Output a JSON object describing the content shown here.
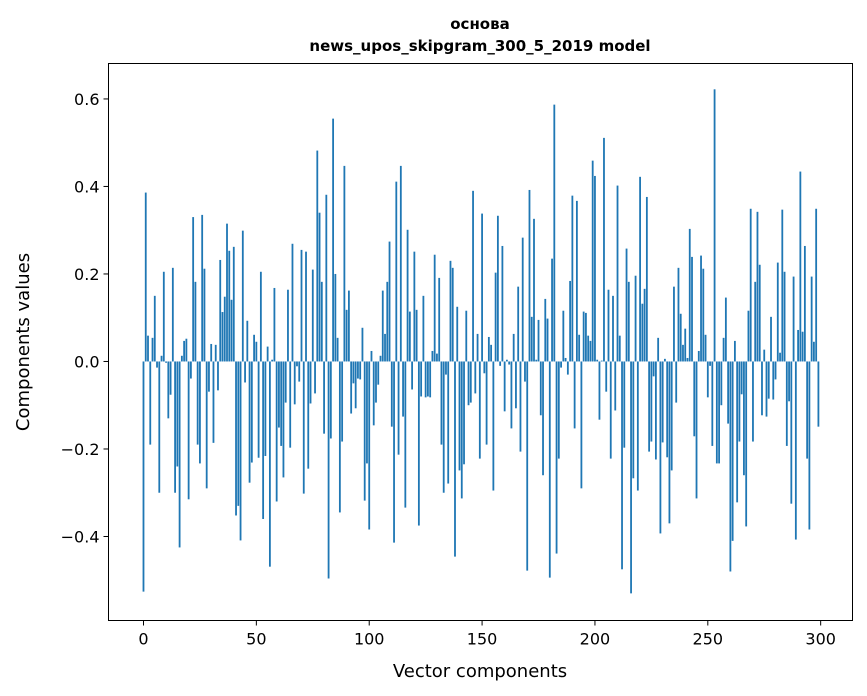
{
  "chart_data": {
    "type": "bar",
    "title": "основа",
    "subtitle": "news_upos_skipgram_300_5_2019 model",
    "xlabel": "Vector components",
    "ylabel": "Components values",
    "xlim": [
      -15.5,
      314.1
    ],
    "ylim": [
      -0.592,
      0.681
    ],
    "xticks": [
      0,
      50,
      100,
      150,
      200,
      250,
      300
    ],
    "xtick_labels": [
      "0",
      "50",
      "100",
      "150",
      "200",
      "250",
      "300"
    ],
    "yticks": [
      -0.4,
      -0.2,
      0.0,
      0.2,
      0.4,
      0.6
    ],
    "ytick_labels": [
      "−0.4",
      "−0.2",
      "0.0",
      "0.2",
      "0.4",
      "0.6"
    ],
    "grid": false,
    "color": "#1f77b4",
    "values": [
      -0.526,
      0.386,
      0.059,
      -0.19,
      0.054,
      0.15,
      -0.014,
      -0.3,
      0.013,
      0.205,
      -0.003,
      -0.13,
      -0.076,
      0.214,
      -0.3,
      -0.24,
      -0.425,
      0.013,
      0.047,
      0.052,
      -0.315,
      -0.039,
      0.33,
      0.182,
      -0.19,
      -0.233,
      0.335,
      0.212,
      -0.29,
      -0.069,
      0.04,
      -0.186,
      0.038,
      -0.066,
      0.232,
      0.113,
      0.148,
      0.315,
      0.253,
      0.141,
      0.262,
      -0.352,
      -0.33,
      -0.409,
      0.299,
      -0.048,
      0.093,
      -0.277,
      -0.231,
      0.061,
      0.045,
      -0.22,
      0.205,
      -0.36,
      -0.216,
      0.034,
      -0.469,
      0.004,
      0.168,
      -0.32,
      -0.151,
      -0.193,
      -0.265,
      -0.094,
      0.164,
      -0.197,
      0.269,
      -0.098,
      -0.011,
      -0.046,
      0.255,
      -0.302,
      0.251,
      -0.245,
      -0.096,
      0.21,
      -0.073,
      0.482,
      0.34,
      0.182,
      -0.165,
      0.381,
      -0.496,
      -0.176,
      0.555,
      0.2,
      0.054,
      -0.345,
      -0.183,
      0.447,
      0.118,
      0.162,
      -0.119,
      -0.05,
      -0.107,
      -0.039,
      -0.041,
      0.077,
      -0.318,
      -0.233,
      -0.384,
      0.024,
      -0.146,
      -0.094,
      -0.053,
      0.013,
      0.162,
      0.063,
      0.182,
      0.274,
      -0.149,
      -0.414,
      0.411,
      -0.213,
      0.447,
      -0.126,
      -0.334,
      0.301,
      0.114,
      -0.064,
      0.251,
      0.118,
      -0.375,
      -0.08,
      0.15,
      -0.082,
      -0.08,
      -0.082,
      0.024,
      0.244,
      0.018,
      0.191,
      -0.19,
      -0.3,
      -0.03,
      -0.279,
      0.23,
      0.214,
      -0.446,
      0.125,
      -0.249,
      -0.313,
      -0.235,
      0.116,
      -0.1,
      -0.094,
      0.39,
      -0.073,
      0.063,
      -0.222,
      0.338,
      -0.027,
      -0.19,
      0.056,
      0.038,
      -0.295,
      0.203,
      0.333,
      -0.01,
      0.264,
      -0.114,
      0.004,
      -0.007,
      -0.153,
      0.063,
      -0.107,
      0.171,
      -0.206,
      0.283,
      -0.046,
      -0.478,
      0.392,
      0.102,
      0.326,
      0.004,
      0.095,
      -0.123,
      -0.26,
      0.143,
      0.098,
      -0.494,
      0.235,
      0.587,
      -0.439,
      -0.222,
      -0.014,
      0.116,
      0.008,
      -0.03,
      0.184,
      0.379,
      -0.153,
      0.367,
      0.061,
      -0.29,
      0.114,
      0.111,
      0.059,
      0.047,
      0.459,
      0.424,
      0.004,
      -0.133,
      0.002,
      0.511,
      -0.069,
      0.164,
      -0.222,
      0.15,
      -0.112,
      0.402,
      0.059,
      -0.475,
      -0.197,
      0.258,
      0.182,
      -0.53,
      -0.267,
      0.196,
      -0.295,
      0.422,
      0.132,
      0.166,
      0.376,
      -0.206,
      -0.183,
      -0.034,
      -0.224,
      0.054,
      -0.393,
      -0.185,
      0.006,
      -0.219,
      -0.37,
      -0.249,
      0.171,
      -0.094,
      0.214,
      0.109,
      0.038,
      0.075,
      0.008,
      0.303,
      0.239,
      -0.171,
      -0.313,
      0.024,
      0.242,
      0.212,
      0.061,
      -0.082,
      -0.01,
      -0.193,
      0.622,
      -0.233,
      -0.233,
      -0.1,
      0.054,
      0.146,
      -0.142,
      -0.48,
      -0.41,
      0.047,
      -0.322,
      -0.183,
      -0.075,
      -0.26,
      -0.377,
      0.116,
      0.349,
      -0.183,
      0.182,
      0.342,
      0.221,
      -0.123,
      0.027,
      -0.126,
      -0.085,
      0.102,
      -0.087,
      -0.041,
      0.226,
      0.02,
      0.347,
      0.205,
      -0.193,
      -0.091,
      -0.325,
      0.194,
      -0.407,
      0.072,
      0.434,
      0.068,
      0.264,
      -0.222,
      -0.384,
      0.194,
      0.045,
      0.349,
      -0.149
    ]
  }
}
